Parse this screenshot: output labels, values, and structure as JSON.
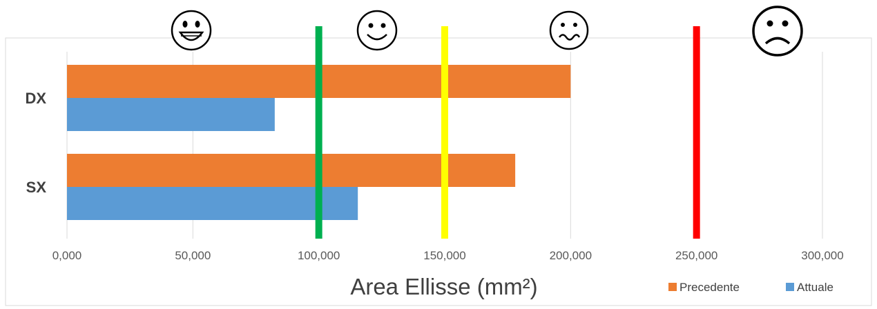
{
  "chart_data": {
    "type": "bar",
    "orientation": "horizontal",
    "categories": [
      "DX",
      "SX"
    ],
    "series": [
      {
        "name": "Precedente",
        "color": "#ED7D31",
        "values": [
          200000,
          178000
        ]
      },
      {
        "name": "Attuale",
        "color": "#5B9BD5",
        "values": [
          82500,
          115500
        ]
      }
    ],
    "xlabel": "Area Ellisse (mm²)",
    "xlim": [
      0,
      300000
    ],
    "x_ticks": [
      0,
      50000,
      100000,
      150000,
      200000,
      250000,
      300000
    ],
    "x_tick_labels": [
      "0,000",
      "50,000",
      "100,000",
      "150,000",
      "200,000",
      "250,000",
      "300,000"
    ],
    "grid": "vertical",
    "legend": "bottom-right",
    "thresholds": [
      {
        "value": 100000,
        "color": "#00B050"
      },
      {
        "value": 150000,
        "color": "#FFFF00"
      },
      {
        "value": 250000,
        "color": "#FF0000"
      }
    ],
    "face_icons": [
      {
        "name": "laughing-face-icon",
        "mood": "very-happy"
      },
      {
        "name": "smiling-face-icon",
        "mood": "happy"
      },
      {
        "name": "queasy-face-icon",
        "mood": "uneasy"
      },
      {
        "name": "frowning-face-icon",
        "mood": "sad"
      }
    ]
  }
}
